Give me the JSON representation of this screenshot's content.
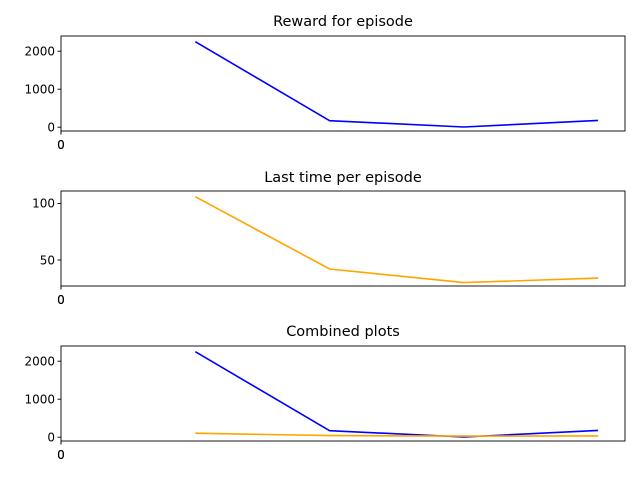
{
  "chart_data": [
    {
      "type": "line",
      "title": "Reward for episode",
      "xlabel": "",
      "ylabel": "",
      "x": [
        1,
        2,
        3,
        4
      ],
      "xlim": [
        0,
        4.2
      ],
      "x_ticks": [
        0,
        0
      ],
      "x_tick_labels": [
        "0",
        "0"
      ],
      "ylim": [
        -100,
        2400
      ],
      "y_ticks": [
        0,
        1000,
        2000
      ],
      "y_tick_labels": [
        "0",
        "1000",
        "2000"
      ],
      "grid": false,
      "series": [
        {
          "color": "#0000ff",
          "values": [
            2250,
            170,
            5,
            180
          ]
        }
      ]
    },
    {
      "type": "line",
      "title": "Last time per episode",
      "xlabel": "",
      "ylabel": "",
      "x": [
        1,
        2,
        3,
        4
      ],
      "xlim": [
        0,
        4.2
      ],
      "x_ticks": [
        0,
        0
      ],
      "x_tick_labels": [
        "0",
        "0"
      ],
      "ylim": [
        27,
        111
      ],
      "y_ticks": [
        50,
        100
      ],
      "y_tick_labels": [
        "50",
        "100"
      ],
      "grid": false,
      "series": [
        {
          "color": "#ffa500",
          "values": [
            106,
            42,
            30,
            34
          ]
        }
      ]
    },
    {
      "type": "line",
      "title": "Combined plots",
      "xlabel": "",
      "ylabel": "",
      "x": [
        1,
        2,
        3,
        4
      ],
      "xlim": [
        0,
        4.2
      ],
      "x_ticks": [
        0,
        0
      ],
      "x_tick_labels": [
        "0",
        "0"
      ],
      "ylim": [
        -100,
        2400
      ],
      "y_ticks": [
        0,
        1000,
        2000
      ],
      "y_tick_labels": [
        "0",
        "1000",
        "2000"
      ],
      "grid": false,
      "series": [
        {
          "color": "#0000ff",
          "values": [
            2250,
            170,
            5,
            180
          ]
        },
        {
          "color": "#ffa500",
          "values": [
            106,
            42,
            30,
            34
          ]
        }
      ]
    }
  ]
}
